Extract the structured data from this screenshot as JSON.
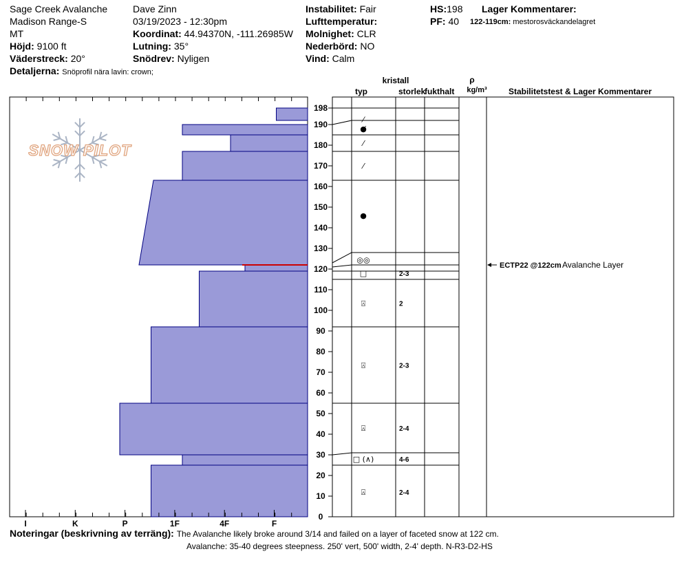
{
  "header": {
    "location_name": "Sage Creek Avalanche",
    "range": "Madison Range-S",
    "state": "MT",
    "elevation_label": "Höjd:",
    "elevation": "9100 ft",
    "aspect_label": "Väderstreck:",
    "aspect": "20°",
    "details_label": "Detaljerna:",
    "details": "Snöprofil nära lavin: crown;",
    "observer": "Dave Zinn",
    "datetime": "03/19/2023 - 12:30pm",
    "coord_label": "Koordinat:",
    "coord": "44.94370N, -111.26985W",
    "slope_label": "Lutning:",
    "slope": "35°",
    "drift_label": "Snödrev:",
    "drift": "Nyligen",
    "instability_label": "Instabilitet:",
    "instability": "Fair",
    "airtemp_label": "Lufttemperatur:",
    "airtemp": "",
    "cloud_label": "Molnighet:",
    "cloud": "CLR",
    "precip_label": "Nederbörd:",
    "precip": "NO",
    "wind_label": "Vind:",
    "wind": "Calm",
    "hs_label": "HS:",
    "hs": "198",
    "pf_label": "PF:",
    "pf": "40",
    "layer_comments_label": "Lager Kommentarer:",
    "layer_comment_range": "122-119cm:",
    "layer_comment_text": "mestorosväckandelagret"
  },
  "columns": {
    "kristall": "kristall",
    "typ": "typ",
    "storlek": "storlek",
    "fukthalt": "fukthalt",
    "rho": "ρ",
    "density_unit": "kg/m³",
    "stability": "Stabilitetstest & Lager Kommentarer"
  },
  "logo_text": "SNOW PILOT",
  "notes": {
    "label": "Noteringar (beskrivning av terräng):",
    "line1": "The Avalanche likely broke around 3/14 and failed on a layer of faceted snow at 122 cm.",
    "line2": "Avalanche: 35-40 degrees steepness. 250' vert, 500' width, 2-4' depth. N-R3-D2-HS"
  },
  "stability_test": {
    "height": 122,
    "label": "ECTP22 @122cm",
    "comment": "Avalanche Layer"
  },
  "chart_data": {
    "type": "bar",
    "title": "",
    "hardness_ticks": [
      "I",
      "K",
      "P",
      "1F",
      "4F",
      "F"
    ],
    "height_ticks": [
      0,
      10,
      20,
      30,
      40,
      50,
      60,
      70,
      80,
      90,
      100,
      110,
      120,
      130,
      140,
      150,
      160,
      170,
      180,
      190,
      198
    ],
    "ylim": [
      0,
      203
    ],
    "hardness_scale_note": "hardness index: F=1, 4F=2, 1F=3, P=4, K=5, I=6",
    "weak_layer_height": 122,
    "hardness_layers": [
      {
        "bottom": 0,
        "top": 25,
        "hardness_start": 3.25
      },
      {
        "bottom": 25,
        "top": 30,
        "hardness_start": 2.6
      },
      {
        "bottom": 30,
        "top": 55,
        "hardness_start": 3.9
      },
      {
        "bottom": 55,
        "top": 92,
        "hardness_start": 3.25
      },
      {
        "bottom": 92,
        "top": 119,
        "hardness_start": 2.25
      },
      {
        "bottom": 119,
        "top": 122,
        "hardness_start": 1.3
      },
      {
        "bottom": 122,
        "top": 163,
        "hardness_start": 3.4,
        "hardness_bottom": 3.5,
        "hardness_top": 3.2
      },
      {
        "bottom": 163,
        "top": 177,
        "hardness_start": 2.6
      },
      {
        "bottom": 177,
        "top": 185,
        "hardness_start": 1.6
      },
      {
        "bottom": 185,
        "top": 190,
        "hardness_start": 2.6
      },
      {
        "bottom": 192,
        "top": 198,
        "hardness_start": 0.65
      }
    ],
    "layer_boundaries": [
      198,
      192,
      185,
      177,
      163,
      128,
      122,
      119,
      115,
      92,
      55,
      31,
      25
    ],
    "grain_rows": [
      {
        "height": 192.5,
        "symbol": "⁄",
        "size": ""
      },
      {
        "height": 188,
        "symbol": "●̸",
        "size": ""
      },
      {
        "height": 181,
        "symbol": "⁄",
        "size": ""
      },
      {
        "height": 170,
        "symbol": "⁄",
        "size": ""
      },
      {
        "height": 146,
        "symbol": "●",
        "size": ""
      },
      {
        "height": 124.5,
        "symbol": "◎◎",
        "size": ""
      },
      {
        "height": 118,
        "symbol": "□",
        "size": "2-3"
      },
      {
        "height": 103.5,
        "symbol": "⍓",
        "size": "2"
      },
      {
        "height": 73.5,
        "symbol": "⍓",
        "size": "2-3"
      },
      {
        "height": 43,
        "symbol": "⍓",
        "size": "2-4"
      },
      {
        "height": 28,
        "symbol": "□ (∧)",
        "size": "4-6"
      },
      {
        "height": 12,
        "symbol": "⍓",
        "size": "2-4"
      }
    ]
  }
}
